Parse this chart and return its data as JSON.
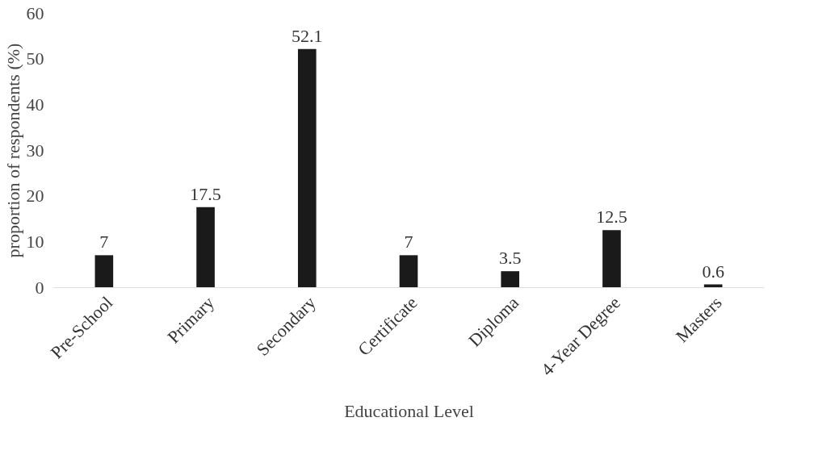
{
  "chart_data": {
    "type": "bar",
    "xlabel": "Educational Level",
    "ylabel": "proportion of respondents (%)",
    "categories": [
      "Pre-School",
      "Primary",
      "Secondary",
      "Certificate",
      "Diploma",
      "4-Year Degree",
      "Masters"
    ],
    "values": [
      7,
      17.5,
      52.1,
      7,
      3.5,
      12.5,
      0.6
    ],
    "color": "#1a1a1a",
    "ylim": [
      0,
      60
    ],
    "yticks": [
      0,
      10,
      20,
      30,
      40,
      50,
      60
    ],
    "grid": false,
    "data_labels": true
  }
}
